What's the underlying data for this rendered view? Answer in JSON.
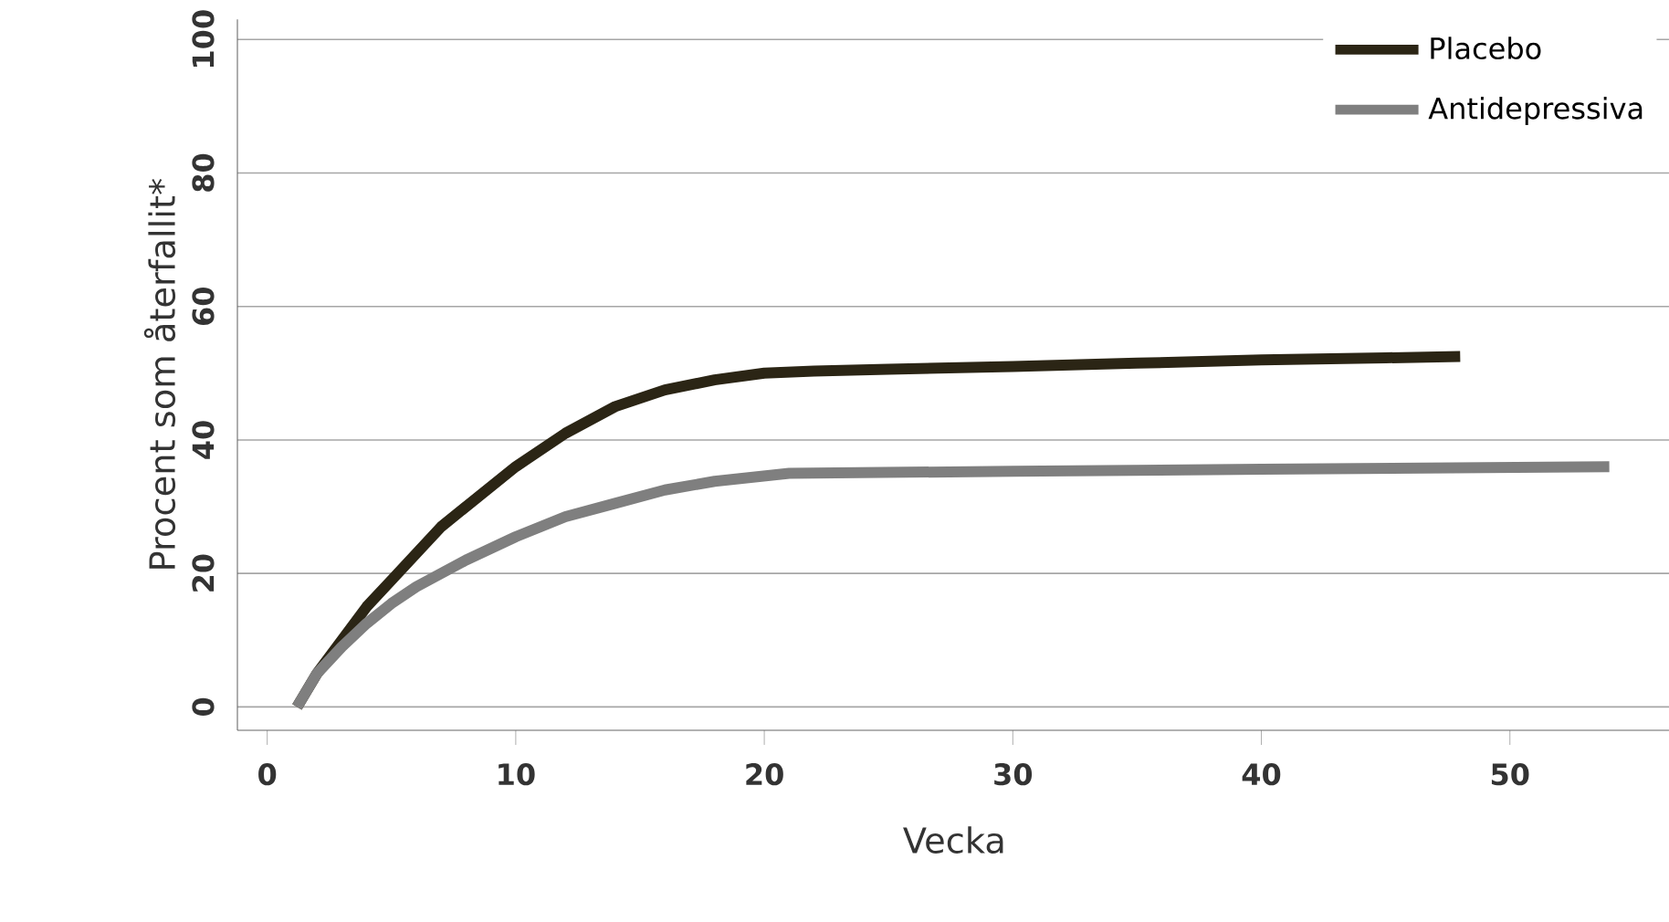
{
  "chart_data": {
    "type": "line",
    "xlabel": "Vecka",
    "ylabel": "Procent som återfallit*",
    "xlim": [
      -1.2,
      56.5
    ],
    "ylim": [
      -3.5,
      103
    ],
    "xticks": [
      0,
      10,
      20,
      30,
      40,
      50
    ],
    "yticks": [
      0,
      20,
      40,
      60,
      80,
      100
    ],
    "grid": "y",
    "legend": "top right",
    "line_style": "solid",
    "marker": "none",
    "series": [
      {
        "name": "Placebo",
        "color": "#2b2515",
        "x": [
          1.2,
          2,
          3,
          4,
          5,
          6,
          7,
          8,
          10,
          12,
          14,
          16,
          18,
          20,
          22,
          25,
          30,
          35,
          40,
          45,
          48
        ],
        "values": [
          0,
          5,
          10,
          15,
          19,
          23,
          27,
          30,
          36,
          41,
          45,
          47.5,
          49,
          50,
          50.3,
          50.6,
          51,
          51.5,
          52,
          52.3,
          52.5
        ]
      },
      {
        "name": "Antidepressiva",
        "color": "#7f7f7f",
        "x": [
          1.2,
          2,
          3,
          4,
          5,
          6,
          8,
          10,
          12,
          14,
          16,
          18,
          21,
          30,
          40,
          54
        ],
        "values": [
          0,
          5,
          9,
          12.5,
          15.5,
          18,
          22,
          25.5,
          28.5,
          30.5,
          32.5,
          33.8,
          35,
          35.3,
          35.6,
          36
        ]
      }
    ]
  }
}
